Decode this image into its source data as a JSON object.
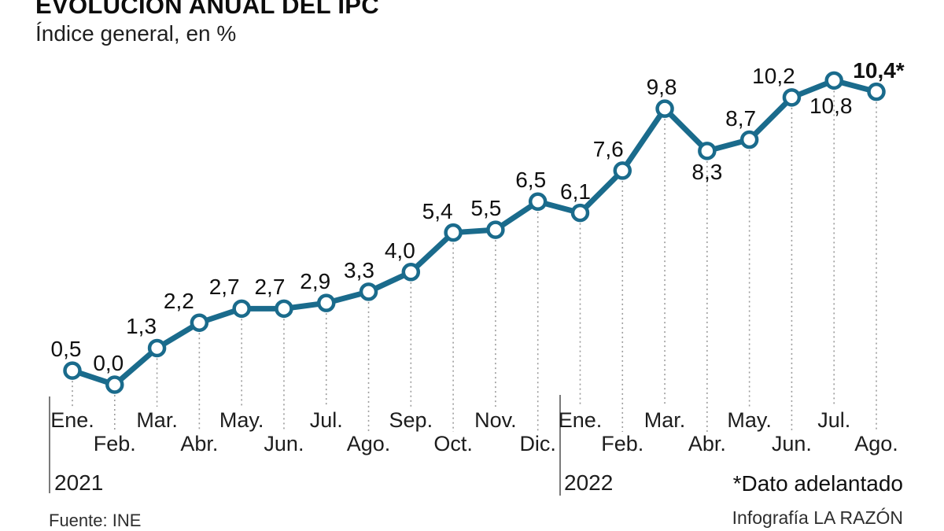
{
  "header": {
    "title": "EVOLUCIÓN ANUAL DEL IPC",
    "subtitle": "Índice general, en %"
  },
  "chart_data": {
    "type": "line",
    "title": "EVOLUCIÓN ANUAL DEL IPC",
    "subtitle": "Índice general, en %",
    "xlabel": "",
    "ylabel": "Índice general, en %",
    "ylim": [
      0,
      11
    ],
    "grid": "dotted vertical droplines under each point",
    "legend": "none",
    "x": [
      "Ene.",
      "Feb.",
      "Mar.",
      "Abr.",
      "May.",
      "Jun.",
      "Jul.",
      "Ago.",
      "Sep.",
      "Oct.",
      "Nov.",
      "Dic.",
      "Ene.",
      "Feb.",
      "Mar.",
      "Abr.",
      "May.",
      "Jun.",
      "Jul.",
      "Ago."
    ],
    "values": [
      0.5,
      0.0,
      1.3,
      2.2,
      2.7,
      2.7,
      2.9,
      3.3,
      4.0,
      5.4,
      5.5,
      6.5,
      6.1,
      7.6,
      9.8,
      8.3,
      8.7,
      10.2,
      10.8,
      10.4
    ],
    "point_labels": [
      "0,5",
      "0,0",
      "1,3",
      "2,2",
      "2,7",
      "2,7",
      "2,9",
      "3,3",
      "4,0",
      "5,4",
      "5,5",
      "6,5",
      "6,1",
      "7,6",
      "9,8",
      "8,3",
      "8,7",
      "10,2",
      "10,8",
      "10,4*"
    ],
    "label_pos": [
      "above",
      "above",
      "above",
      "above",
      "above",
      "above",
      "above",
      "above",
      "above",
      "above",
      "above",
      "above",
      "above",
      "above",
      "above",
      "below",
      "above",
      "above",
      "below",
      "above"
    ],
    "label_dx": [
      -8,
      -8,
      -20,
      -26,
      -22,
      -18,
      -14,
      -12,
      -14,
      -20,
      -12,
      -9,
      -6,
      -18,
      -4,
      0,
      -11,
      -23,
      -4,
      3
    ],
    "label_dy": [
      0,
      0,
      0,
      0,
      0,
      0,
      0,
      0,
      0,
      0,
      0,
      0,
      0,
      0,
      0,
      0,
      0,
      0,
      6,
      0
    ],
    "label_bold": [
      false,
      false,
      false,
      false,
      false,
      false,
      false,
      false,
      false,
      false,
      false,
      false,
      false,
      false,
      false,
      false,
      false,
      false,
      false,
      true
    ],
    "years": [
      {
        "label": "2021",
        "from": 0,
        "to": 11
      },
      {
        "label": "2022",
        "from": 12,
        "to": 19
      }
    ],
    "footnote": "*Dato adelantado",
    "line_color": "#1a6b8c",
    "marker_fill": "#ffffff",
    "dropline_color": "#9b9b9b",
    "axis_color": "#4d4d4d"
  },
  "footer": {
    "source": "Fuente: INE",
    "credit": "Infografía LA RAZÓN"
  }
}
